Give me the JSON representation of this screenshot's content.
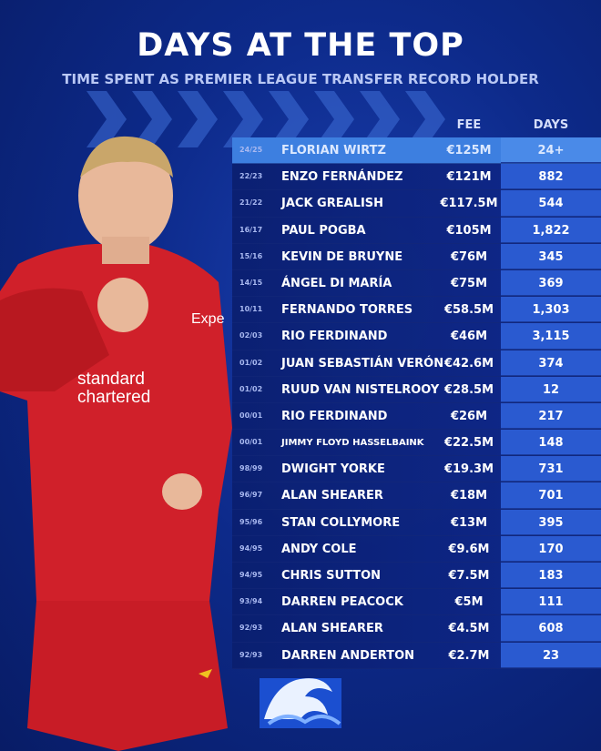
{
  "title": "DAYS AT THE TOP",
  "subtitle": "TIME SPENT AS PREMIER LEAGUE TRANSFER RECORD HOLDER",
  "colors": {
    "background": "#0d2a8a",
    "highlight_row": "#3d7fe0",
    "days_column": "#2a5ad0",
    "shirt": "#d0202a"
  },
  "table": {
    "headers": {
      "fee": "FEE",
      "days": "DAYS"
    },
    "rows": [
      {
        "season": "24/25",
        "name": "FLORIAN WIRTZ",
        "fee": "€125M",
        "days": "24+"
      },
      {
        "season": "22/23",
        "name": "ENZO FERNÁNDEZ",
        "fee": "€121M",
        "days": "882"
      },
      {
        "season": "21/22",
        "name": "JACK GREALISH",
        "fee": "€117.5M",
        "days": "544"
      },
      {
        "season": "16/17",
        "name": "PAUL POGBA",
        "fee": "€105M",
        "days": "1,822"
      },
      {
        "season": "15/16",
        "name": "KEVIN DE BRUYNE",
        "fee": "€76M",
        "days": "345"
      },
      {
        "season": "14/15",
        "name": "ÁNGEL DI MARÍA",
        "fee": "€75M",
        "days": "369"
      },
      {
        "season": "10/11",
        "name": "FERNANDO TORRES",
        "fee": "€58.5M",
        "days": "1,303"
      },
      {
        "season": "02/03",
        "name": "RIO FERDINAND",
        "fee": "€46M",
        "days": "3,115"
      },
      {
        "season": "01/02",
        "name": "JUAN SEBASTIÁN VERÓN",
        "fee": "€42.6M",
        "days": "374"
      },
      {
        "season": "01/02",
        "name": "RUUD VAN NISTELROOY",
        "fee": "€28.5M",
        "days": "12"
      },
      {
        "season": "00/01",
        "name": "RIO FERDINAND",
        "fee": "€26M",
        "days": "217"
      },
      {
        "season": "00/01",
        "name": "JIMMY FLOYD HASSELBAINK",
        "fee": "€22.5M",
        "days": "148"
      },
      {
        "season": "98/99",
        "name": "DWIGHT YORKE",
        "fee": "€19.3M",
        "days": "731"
      },
      {
        "season": "96/97",
        "name": "ALAN SHEARER",
        "fee": "€18M",
        "days": "701"
      },
      {
        "season": "95/96",
        "name": "STAN COLLYMORE",
        "fee": "€13M",
        "days": "395"
      },
      {
        "season": "94/95",
        "name": "ANDY COLE",
        "fee": "€9.6M",
        "days": "170"
      },
      {
        "season": "94/95",
        "name": "CHRIS SUTTON",
        "fee": "€7.5M",
        "days": "183"
      },
      {
        "season": "93/94",
        "name": "DARREN PEACOCK",
        "fee": "€5M",
        "days": "111"
      },
      {
        "season": "92/93",
        "name": "ALAN SHEARER",
        "fee": "€4.5M",
        "days": "608"
      },
      {
        "season": "92/93",
        "name": "DARREN ANDERTON",
        "fee": "€2.7M",
        "days": "23"
      }
    ]
  },
  "player": {
    "shirt_text": "standard chartered",
    "sleeve_text": "Expe"
  },
  "logo": {
    "icon": "wave-logo-icon"
  }
}
